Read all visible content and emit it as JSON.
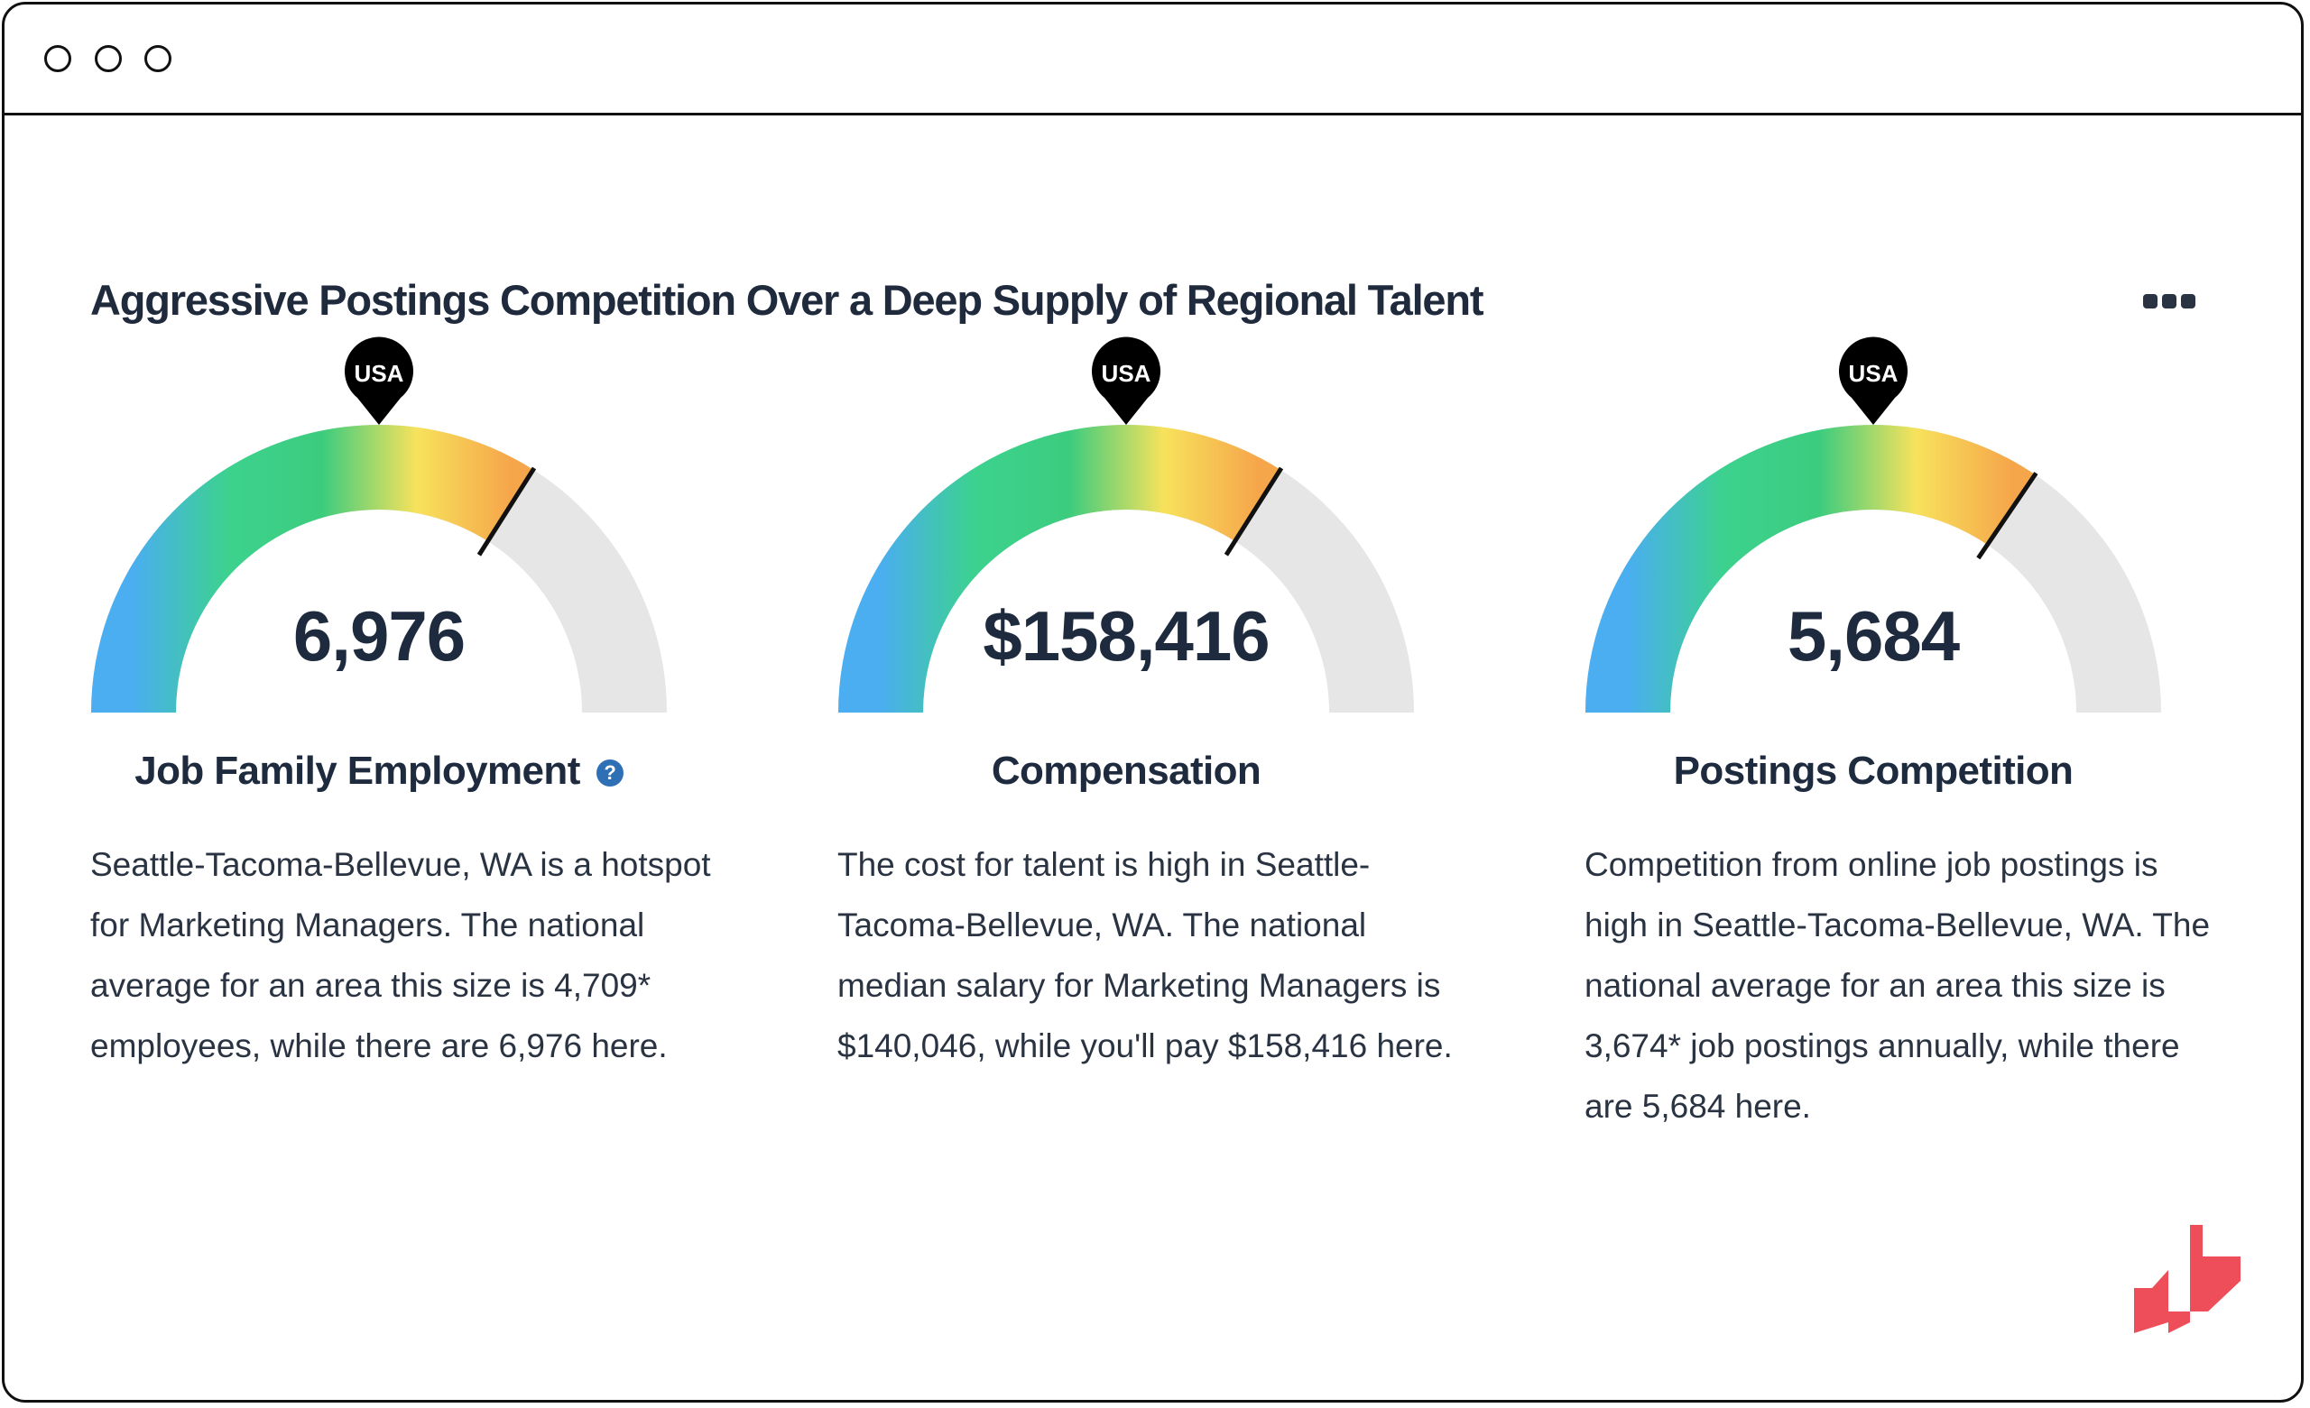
{
  "card": {
    "title": "Aggressive Postings Competition Over a Deep Supply of Regional Talent",
    "more_icon": "more-horizontal-icon"
  },
  "gauges": [
    {
      "value": "6,976",
      "label": "Job Family Employment",
      "marker_label": "USA",
      "help_icon": "question-circle-icon",
      "help_glyph": "?",
      "level_fraction": 0.68,
      "usa_fraction": 0.5,
      "description": "Seattle-Tacoma-Bellevue, WA is a hotspot for Marketing Managers. The national average for an area this size is 4,709* employees, while there are 6,976 here."
    },
    {
      "value": "$158,416",
      "label": "Compensation",
      "marker_label": "USA",
      "level_fraction": 0.68,
      "usa_fraction": 0.5,
      "description": "The cost for talent is high in Seattle-Tacoma-Bellevue, WA. The national median salary for Marketing Managers is $140,046, while you'll pay $158,416 here."
    },
    {
      "value": "5,684",
      "label": "Postings Competition",
      "marker_label": "USA",
      "level_fraction": 0.69,
      "usa_fraction": 0.5,
      "description": "Competition from online job postings is high in Seattle-Tacoma-Bellevue, WA. The national average for an area this size is 3,674* job postings annually, while there are 5,684 here."
    }
  ],
  "colors": {
    "gradient": [
      "#4aaef0",
      "#3cd28e",
      "#3ccc7e",
      "#f7e25c",
      "#f6a64a"
    ],
    "track": "#e6e6e6",
    "pin": "#000000",
    "brand": "#ee4d5a"
  },
  "brand_icon": "brand-logo-icon"
}
